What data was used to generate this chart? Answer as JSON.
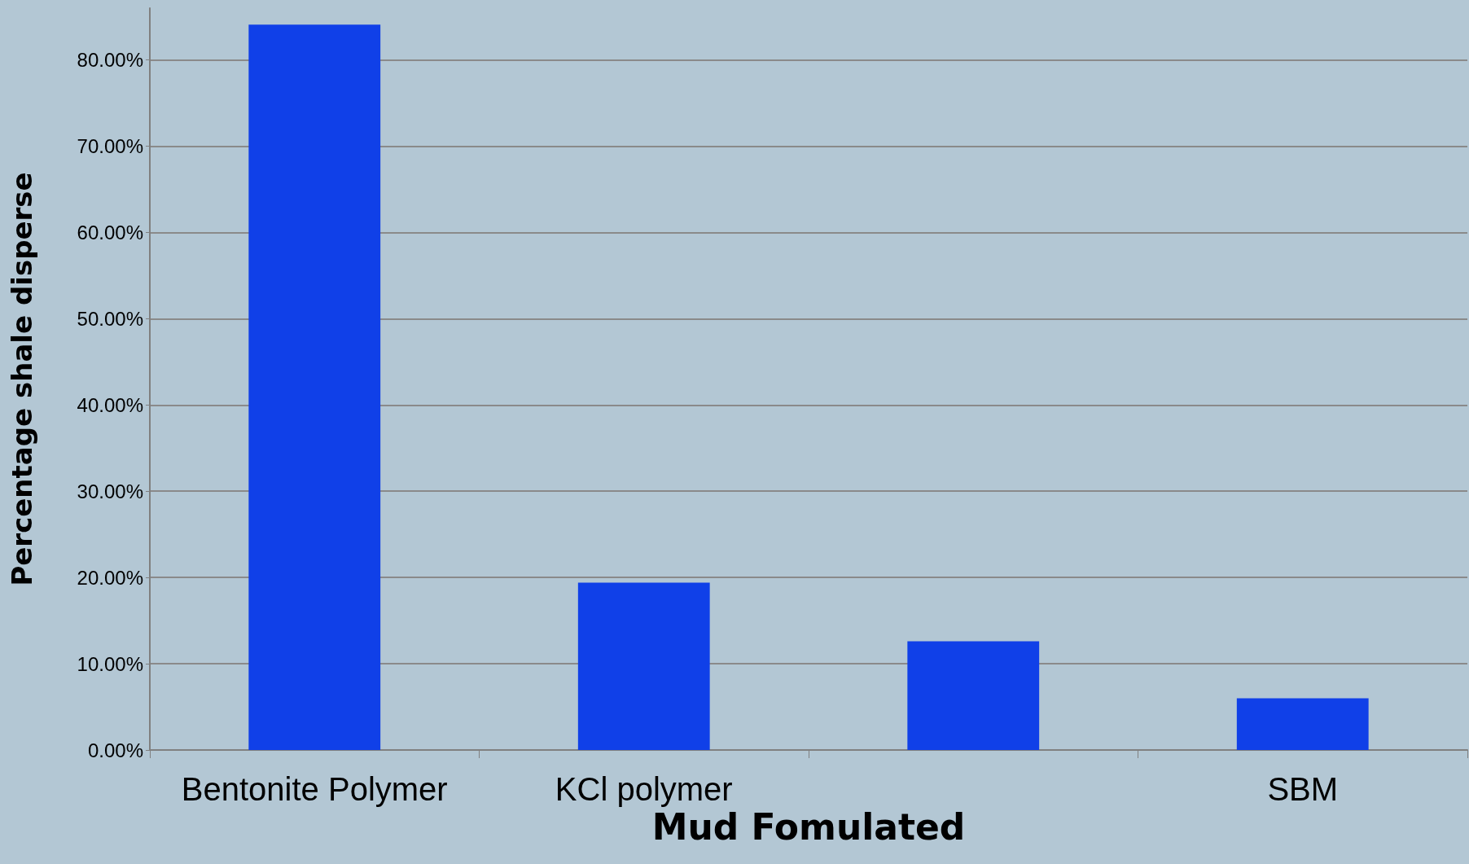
{
  "chart_data": {
    "type": "bar",
    "categories": [
      "Bentonite Polymer",
      "KCl polymer",
      null,
      "SBM"
    ],
    "values": [
      84.1,
      19.4,
      12.6,
      6.0
    ],
    "color": "#1040e8",
    "xlabel": "Mud Fomulated",
    "ylabel": "Percentage shale disperse",
    "ylim": [
      0,
      86
    ],
    "yticks": [
      {
        "value": 0,
        "label": "0.00%"
      },
      {
        "value": 10,
        "label": "10.00%"
      },
      {
        "value": 20,
        "label": "20.00%"
      },
      {
        "value": 30,
        "label": "30.00%"
      },
      {
        "value": 40,
        "label": "40.00%"
      },
      {
        "value": 50,
        "label": "50.00%"
      },
      {
        "value": 60,
        "label": "60.00%"
      },
      {
        "value": 70,
        "label": "70.00%"
      },
      {
        "value": 80,
        "label": "80.00%"
      }
    ],
    "grid": "y"
  }
}
